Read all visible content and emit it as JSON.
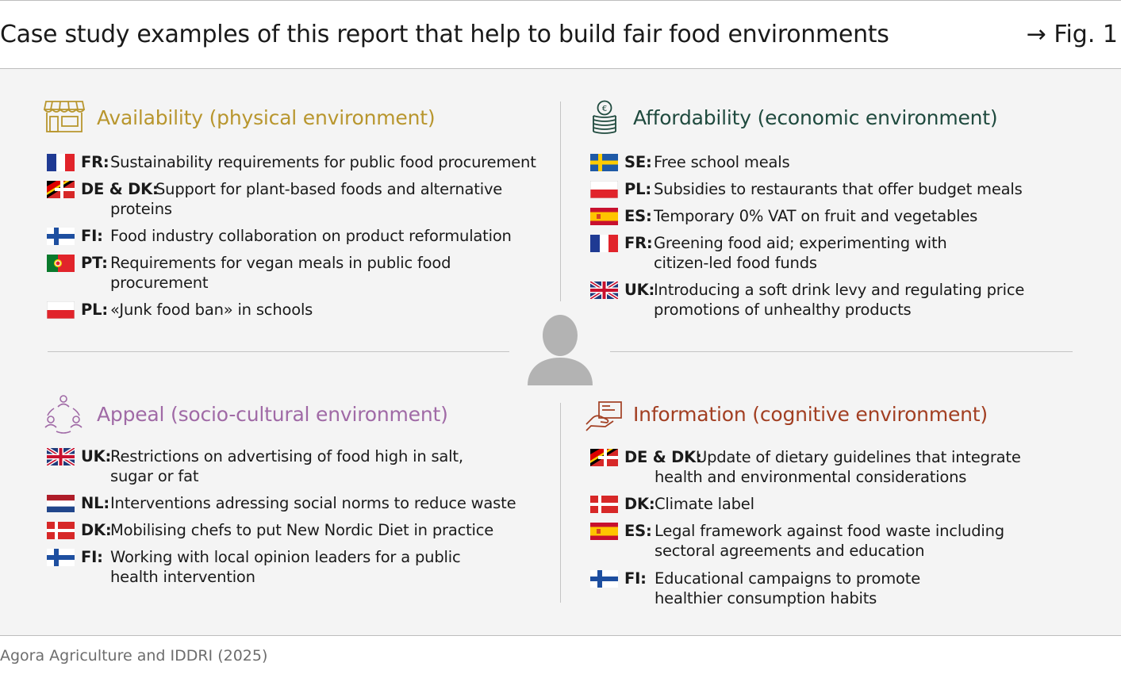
{
  "title": "Case study examples of this report that help to build fair food environments",
  "figure_ref": "→ Fig. 1",
  "source": "Agora Agriculture and IDDRI (2025)",
  "colors": {
    "availability": "#b8962e",
    "affordability": "#1f4a3e",
    "appeal": "#a06aa6",
    "information": "#a23f22",
    "person": "#b3b3b3",
    "panel_bg": "#f4f4f4"
  },
  "quadrants": {
    "availability": {
      "icon": "shop-icon",
      "title": "Availability (physical environment)",
      "items": [
        {
          "flag": "fr",
          "code": "FR:",
          "text": "Sustainability requirements for public food procurement"
        },
        {
          "flag": "de-dk",
          "code": "DE & DK:",
          "text": "Support for plant-based foods and alternative",
          "text2": "proteins"
        },
        {
          "flag": "fi",
          "code": "FI:",
          "text": "Food industry collaboration on product reformulation"
        },
        {
          "flag": "pt",
          "code": "PT:",
          "text": "Requirements for vegan meals in public food",
          "text2": "procurement"
        },
        {
          "flag": "pl",
          "code": "PL:",
          "text": "«Junk food ban» in schools"
        }
      ]
    },
    "affordability": {
      "icon": "coins-icon",
      "title": "Affordability (economic environment)",
      "items": [
        {
          "flag": "se",
          "code": "SE:",
          "text": "Free school meals"
        },
        {
          "flag": "pl",
          "code": "PL:",
          "text": "Subsidies to restaurants that offer budget meals"
        },
        {
          "flag": "es",
          "code": "ES:",
          "text": "Temporary 0% VAT on fruit and vegetables"
        },
        {
          "flag": "fr",
          "code": "FR:",
          "text": "Greening food aid; experimenting with",
          "text2": "citizen-led food funds"
        },
        {
          "flag": "uk",
          "code": "UK:",
          "text": "Introducing a soft drink levy and regulating price",
          "text2": "promotions of unhealthy products"
        }
      ]
    },
    "appeal": {
      "icon": "community-icon",
      "title": "Appeal (socio-cultural environment)",
      "items": [
        {
          "flag": "uk",
          "code": "UK:",
          "text": "Restrictions on advertising of food high in salt,",
          "text2": "sugar or fat"
        },
        {
          "flag": "nl",
          "code": "NL:",
          "text": "Interventions adressing social norms to reduce waste"
        },
        {
          "flag": "dk",
          "code": "DK:",
          "text": "Mobilising chefs to put New Nordic Diet in practice"
        },
        {
          "flag": "fi",
          "code": "FI:",
          "text": "Working with local opinion leaders for a public",
          "text2": "health intervention"
        }
      ]
    },
    "information": {
      "icon": "hand-screen-icon",
      "title": "Information (cognitive environment)",
      "items": [
        {
          "flag": "de-dk",
          "code": "DE & DK:",
          "text": "Update of dietary guidelines that integrate",
          "text2": "health and environmental considerations"
        },
        {
          "flag": "dk",
          "code": "DK:",
          "text": "Climate label"
        },
        {
          "flag": "es",
          "code": "ES:",
          "text": "Legal framework against food waste including",
          "text2": "sectoral agreements and education"
        },
        {
          "flag": "fi",
          "code": "FI:",
          "text": "Educational campaigns to promote",
          "text2": "healthier consumption habits"
        }
      ]
    }
  }
}
